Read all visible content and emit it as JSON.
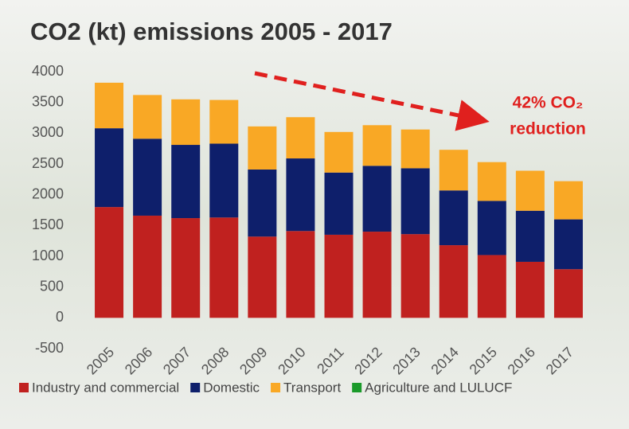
{
  "chart_data": {
    "type": "stacked_bar",
    "title": "CO2 (kt) emissions 2005 - 2017",
    "categories": [
      "2005",
      "2006",
      "2007",
      "2008",
      "2009",
      "2010",
      "2011",
      "2012",
      "2013",
      "2014",
      "2015",
      "2016",
      "2017"
    ],
    "series": [
      {
        "name": "Industry and commercial",
        "color": "#c0211f",
        "values": [
          1800,
          1660,
          1620,
          1630,
          1320,
          1410,
          1350,
          1400,
          1360,
          1180,
          1020,
          910,
          790
        ]
      },
      {
        "name": "Domestic",
        "color": "#0e1f6b",
        "values": [
          1280,
          1250,
          1190,
          1200,
          1090,
          1180,
          1010,
          1070,
          1070,
          890,
          880,
          830,
          810
        ]
      },
      {
        "name": "Transport",
        "color": "#f9a825",
        "values": [
          740,
          710,
          740,
          710,
          700,
          670,
          660,
          660,
          630,
          660,
          630,
          650,
          620
        ]
      },
      {
        "name": "Agriculture and LULUCF",
        "color": "#1a9a2a",
        "values": [
          0,
          0,
          0,
          0,
          0,
          0,
          0,
          0,
          0,
          0,
          0,
          0,
          0
        ]
      }
    ],
    "ylim": [
      -500,
      4000
    ],
    "yticks": [
      -500,
      0,
      500,
      1000,
      1500,
      2000,
      2500,
      3000,
      3500,
      4000
    ],
    "grid": false,
    "annotations": [
      "42% CO₂",
      "reduction"
    ],
    "annotation_color": "#e0201e"
  }
}
